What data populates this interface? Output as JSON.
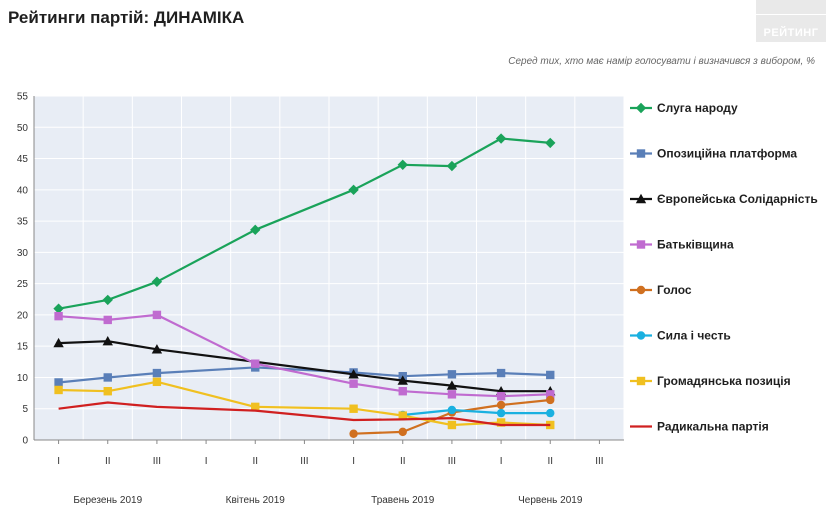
{
  "header": {
    "title": "Рейтинги партій: ДИНАМІКА",
    "subtitle": "Серед тих, хто має намір голосувати і визначився з вибором, %",
    "logo_text": "РЕЙТИНГ"
  },
  "chart_data": {
    "type": "line",
    "ylim": [
      0,
      55
    ],
    "yticks": [
      0,
      5,
      10,
      15,
      20,
      25,
      30,
      35,
      40,
      45,
      50,
      55
    ],
    "x_ticks": [
      "I",
      "II",
      "III",
      "I",
      "II",
      "III",
      "I",
      "II",
      "III",
      "I",
      "II",
      "III"
    ],
    "months": [
      {
        "label": "Березень 2019",
        "span": [
          0,
          2
        ]
      },
      {
        "label": "Квітень 2019",
        "span": [
          3,
          5
        ]
      },
      {
        "label": "Травень 2019",
        "span": [
          6,
          8
        ]
      },
      {
        "label": "Червень 2019",
        "span": [
          9,
          11
        ]
      }
    ],
    "grid": true,
    "legend_position": "right",
    "series": [
      {
        "name": "Слуга народу",
        "color": "#1aa35a",
        "marker": "diamond",
        "points": [
          [
            0,
            21.0
          ],
          [
            1,
            22.4
          ],
          [
            2,
            25.3
          ],
          [
            4,
            33.6
          ],
          [
            6,
            40.0
          ],
          [
            7,
            44.0
          ],
          [
            8,
            43.8
          ],
          [
            9,
            48.2
          ],
          [
            10,
            47.5
          ]
        ]
      },
      {
        "name": "Опозиційна платформа",
        "color": "#5a7fb8",
        "marker": "square",
        "points": [
          [
            0,
            9.2
          ],
          [
            1,
            10.0
          ],
          [
            2,
            10.7
          ],
          [
            4,
            11.6
          ],
          [
            6,
            10.8
          ],
          [
            7,
            10.2
          ],
          [
            8,
            10.5
          ],
          [
            9,
            10.7
          ],
          [
            10,
            10.4
          ]
        ]
      },
      {
        "name": "Європейська Солідарність",
        "color": "#111111",
        "marker": "triangle",
        "points": [
          [
            0,
            15.5
          ],
          [
            1,
            15.8
          ],
          [
            2,
            14.5
          ],
          [
            6,
            10.5
          ],
          [
            7,
            9.5
          ],
          [
            8,
            8.7
          ],
          [
            9,
            7.8
          ],
          [
            10,
            7.8
          ]
        ]
      },
      {
        "name": "Батьківщина",
        "color": "#c06bd0",
        "marker": "square",
        "points": [
          [
            0,
            19.8
          ],
          [
            1,
            19.2
          ],
          [
            2,
            20.0
          ],
          [
            4,
            12.2
          ],
          [
            6,
            9.0
          ],
          [
            7,
            7.8
          ],
          [
            8,
            7.3
          ],
          [
            9,
            7.0
          ],
          [
            10,
            7.3
          ]
        ]
      },
      {
        "name": "Голос",
        "color": "#d07020",
        "marker": "circle",
        "points": [
          [
            6,
            1.0
          ],
          [
            7,
            1.3
          ],
          [
            8,
            4.4
          ],
          [
            9,
            5.6
          ],
          [
            10,
            6.4
          ]
        ]
      },
      {
        "name": "Сила і честь",
        "color": "#1ab0e0",
        "marker": "circle",
        "points": [
          [
            7,
            4.0
          ],
          [
            8,
            4.8
          ],
          [
            9,
            4.3
          ],
          [
            10,
            4.3
          ]
        ]
      },
      {
        "name": "Громадянська позиція",
        "color": "#f0c020",
        "marker": "square",
        "points": [
          [
            0,
            8.0
          ],
          [
            1,
            7.8
          ],
          [
            2,
            9.3
          ],
          [
            4,
            5.3
          ],
          [
            6,
            5.0
          ],
          [
            7,
            3.9
          ],
          [
            8,
            2.4
          ],
          [
            9,
            2.8
          ],
          [
            10,
            2.4
          ]
        ]
      },
      {
        "name": "Радикальна партія",
        "color": "#d02020",
        "marker": "none",
        "points": [
          [
            0,
            5.0
          ],
          [
            1,
            6.0
          ],
          [
            2,
            5.3
          ],
          [
            4,
            4.7
          ],
          [
            6,
            3.2
          ],
          [
            7,
            3.3
          ],
          [
            8,
            3.5
          ],
          [
            9,
            2.4
          ],
          [
            10,
            2.4
          ]
        ]
      }
    ]
  }
}
